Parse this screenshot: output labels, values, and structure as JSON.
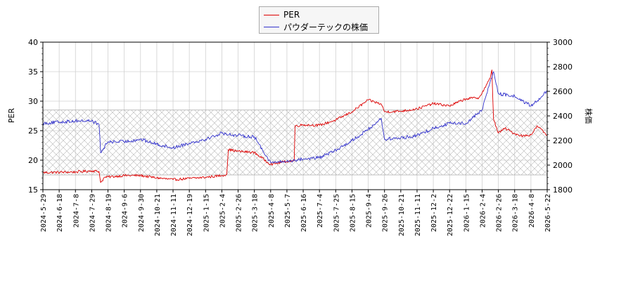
{
  "chart_data": {
    "type": "line",
    "title": "",
    "legend_placement": "top-center",
    "grid": true,
    "shaded_band": {
      "axis": "y",
      "range": [
        17.5,
        28.5
      ],
      "pattern": "cross-hatch"
    },
    "x_tick_labels": [
      "2024-5-29",
      "2024-6-18",
      "2024-7-8",
      "2024-7-29",
      "2024-8-19",
      "2024-9-6",
      "2024-9-30",
      "2024-10-21",
      "2024-11-11",
      "2024-12-19",
      "2025-1-15",
      "2025-2-4",
      "2025-2-26",
      "2025-3-18",
      "2025-4-8",
      "2025-5-7",
      "2025-6-16",
      "2025-7-4",
      "2025-7-25",
      "2025-8-15",
      "2025-9-4",
      "2025-9-26",
      "2025-10-21",
      "2025-11-11",
      "2025-12-2",
      "2025-12-22",
      "2026-1-15",
      "2026-2-4",
      "2026-2-26",
      "2026-3-18",
      "2026-4-8",
      "2026-5-22"
    ],
    "y_left": {
      "label": "PER",
      "lim": [
        15,
        40
      ],
      "ticks": [
        "15",
        "20",
        "25",
        "30",
        "35",
        "40"
      ],
      "color": "#dd0000"
    },
    "y_right": {
      "label": "株価",
      "lim": [
        1800,
        3000
      ],
      "ticks": [
        "1800",
        "2000",
        "2200",
        "2400",
        "2600",
        "2800",
        "3000"
      ],
      "color": "#3333cc"
    },
    "series": [
      {
        "name": "PER",
        "axis": "left",
        "color": "#dd0000",
        "keypoints": [
          [
            0,
            17.9
          ],
          [
            2,
            18.0
          ],
          [
            3,
            18.2
          ],
          [
            3.45,
            18.1
          ],
          [
            3.55,
            16.2
          ],
          [
            3.8,
            17.1
          ],
          [
            5,
            17.4
          ],
          [
            6,
            17.4
          ],
          [
            7,
            17.0
          ],
          [
            8,
            16.7
          ],
          [
            9,
            16.9
          ],
          [
            10,
            17.1
          ],
          [
            11,
            17.4
          ],
          [
            11.3,
            17.6
          ],
          [
            11.4,
            21.8
          ],
          [
            12,
            21.5
          ],
          [
            13,
            21.3
          ],
          [
            14,
            19.3
          ],
          [
            15,
            19.8
          ],
          [
            15.45,
            19.9
          ],
          [
            15.5,
            25.8
          ],
          [
            16,
            26.0
          ],
          [
            17,
            25.9
          ],
          [
            18,
            26.8
          ],
          [
            19,
            28.2
          ],
          [
            20,
            30.2
          ],
          [
            20.8,
            29.5
          ],
          [
            21,
            28.2
          ],
          [
            22,
            28.3
          ],
          [
            23,
            28.7
          ],
          [
            24,
            29.6
          ],
          [
            25,
            29.2
          ],
          [
            26,
            30.4
          ],
          [
            26.8,
            30.6
          ],
          [
            27,
            31.4
          ],
          [
            27.3,
            32.9
          ],
          [
            27.5,
            33.9
          ],
          [
            27.6,
            35.3
          ],
          [
            27.7,
            27.0
          ],
          [
            28,
            24.6
          ],
          [
            28.4,
            25.4
          ],
          [
            29,
            24.5
          ],
          [
            29.5,
            24.1
          ],
          [
            30,
            24.3
          ],
          [
            30.4,
            25.8
          ],
          [
            31,
            24.2
          ],
          [
            31.5,
            25.2
          ],
          [
            31.8,
            24.6
          ],
          [
            32,
            23.5
          ]
        ]
      },
      {
        "name": "パウダーテックの株価",
        "axis": "right",
        "color": "#3333cc",
        "keypoints": [
          [
            0,
            2340
          ],
          [
            1,
            2350
          ],
          [
            2,
            2360
          ],
          [
            3,
            2360
          ],
          [
            3.45,
            2330
          ],
          [
            3.55,
            2100
          ],
          [
            4,
            2190
          ],
          [
            5,
            2190
          ],
          [
            6,
            2210
          ],
          [
            7,
            2170
          ],
          [
            8,
            2140
          ],
          [
            9,
            2180
          ],
          [
            10,
            2210
          ],
          [
            11,
            2260
          ],
          [
            12,
            2240
          ],
          [
            13,
            2230
          ],
          [
            14,
            2020
          ],
          [
            15,
            2030
          ],
          [
            16,
            2050
          ],
          [
            17,
            2060
          ],
          [
            18,
            2120
          ],
          [
            19,
            2200
          ],
          [
            20,
            2290
          ],
          [
            20.8,
            2380
          ],
          [
            21,
            2210
          ],
          [
            22,
            2220
          ],
          [
            23,
            2240
          ],
          [
            24,
            2300
          ],
          [
            25,
            2340
          ],
          [
            26,
            2340
          ],
          [
            27,
            2450
          ],
          [
            27.5,
            2680
          ],
          [
            27.7,
            2760
          ],
          [
            28,
            2580
          ],
          [
            29,
            2560
          ],
          [
            30,
            2480
          ],
          [
            31,
            2600
          ],
          [
            32,
            2530
          ]
        ]
      }
    ]
  }
}
